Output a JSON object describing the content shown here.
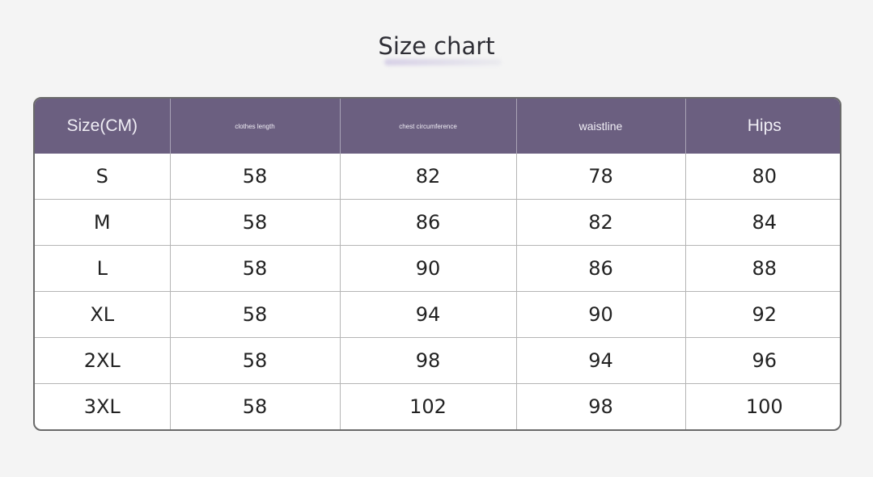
{
  "title": "Size chart",
  "table": {
    "headers": [
      "Size(CM)",
      "clothes length",
      "chest circumference",
      "waistline",
      "Hips"
    ],
    "rows": [
      [
        "S",
        "58",
        "82",
        "78",
        "80"
      ],
      [
        "M",
        "58",
        "86",
        "82",
        "84"
      ],
      [
        "L",
        "58",
        "90",
        "86",
        "88"
      ],
      [
        "XL",
        "58",
        "94",
        "90",
        "92"
      ],
      [
        "2XL",
        "58",
        "98",
        "94",
        "96"
      ],
      [
        "3XL",
        "58",
        "102",
        "98",
        "100"
      ]
    ]
  },
  "colors": {
    "header_bg": "#6b5f80",
    "background": "#f4f4f4"
  }
}
